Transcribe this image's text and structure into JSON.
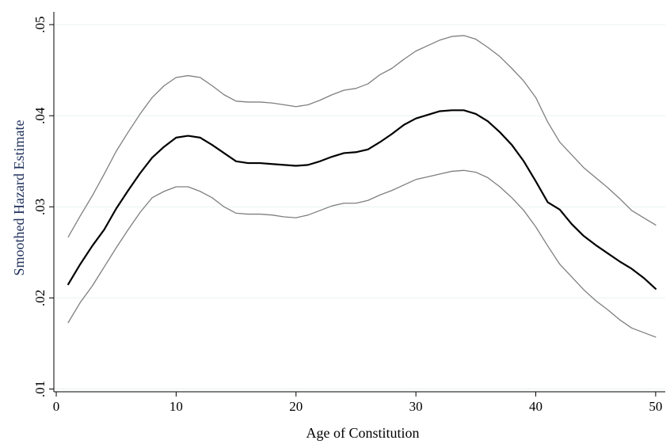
{
  "chart_data": {
    "type": "line",
    "xlabel": "Age of Constitution",
    "ylabel": "Smoothed Hazard Estimate",
    "xlim": [
      -0.2,
      50.8
    ],
    "ylim": [
      0.0097,
      0.0514
    ],
    "xticks": [
      0,
      10,
      20,
      30,
      40,
      50
    ],
    "xtick_labels": [
      "0",
      "10",
      "20",
      "30",
      "40",
      "50"
    ],
    "yticks": [
      0.01,
      0.02,
      0.03,
      0.04,
      0.05
    ],
    "ytick_labels": [
      ".01",
      ".02",
      ".03",
      ".04",
      ".05"
    ],
    "grid": "horizontal",
    "legend": "none",
    "colors": {
      "estimate": "#000000",
      "bounds": "#7f7f7f",
      "ylabel": "#1e2f5a",
      "grid": "#eaf2f3"
    },
    "x": [
      1,
      2,
      3,
      4,
      5,
      6,
      7,
      8,
      9,
      10,
      11,
      12,
      13,
      14,
      15,
      16,
      17,
      18,
      19,
      20,
      21,
      22,
      23,
      24,
      25,
      26,
      27,
      28,
      29,
      30,
      31,
      32,
      33,
      34,
      35,
      36,
      37,
      38,
      39,
      40,
      41,
      42,
      43,
      44,
      45,
      46,
      47,
      48,
      49,
      50
    ],
    "series": [
      {
        "role": "estimate",
        "values": [
          0.0215,
          0.0237,
          0.0257,
          0.0275,
          0.0298,
          0.0318,
          0.0337,
          0.0354,
          0.0366,
          0.0376,
          0.0378,
          0.0376,
          0.0368,
          0.0359,
          0.035,
          0.0348,
          0.0348,
          0.0347,
          0.0346,
          0.0345,
          0.0346,
          0.035,
          0.0355,
          0.0359,
          0.036,
          0.0363,
          0.0371,
          0.038,
          0.039,
          0.0397,
          0.0401,
          0.0405,
          0.0406,
          0.0406,
          0.0402,
          0.0394,
          0.0382,
          0.0368,
          0.035,
          0.0328,
          0.0305,
          0.0297,
          0.0281,
          0.0268,
          0.0258,
          0.0249,
          0.024,
          0.0232,
          0.0222,
          0.021
        ]
      },
      {
        "role": "upper",
        "values": [
          0.0267,
          0.029,
          0.0312,
          0.0336,
          0.0361,
          0.0382,
          0.0402,
          0.042,
          0.0433,
          0.0442,
          0.0444,
          0.0442,
          0.0433,
          0.0423,
          0.0416,
          0.0415,
          0.0415,
          0.0414,
          0.0412,
          0.041,
          0.0412,
          0.0417,
          0.0423,
          0.0428,
          0.043,
          0.0435,
          0.0445,
          0.0452,
          0.0462,
          0.0471,
          0.0477,
          0.0483,
          0.0487,
          0.0488,
          0.0484,
          0.0475,
          0.0465,
          0.0452,
          0.0438,
          0.042,
          0.0393,
          0.0371,
          0.0357,
          0.0343,
          0.0332,
          0.0321,
          0.0309,
          0.0296,
          0.0288,
          0.028
        ]
      },
      {
        "role": "lower",
        "values": [
          0.0173,
          0.0195,
          0.0213,
          0.0234,
          0.0255,
          0.0275,
          0.0294,
          0.031,
          0.0317,
          0.0322,
          0.0322,
          0.0317,
          0.031,
          0.03,
          0.0293,
          0.0292,
          0.0292,
          0.0291,
          0.0289,
          0.0288,
          0.0291,
          0.0296,
          0.0301,
          0.0304,
          0.0304,
          0.0307,
          0.0313,
          0.0318,
          0.0324,
          0.033,
          0.0333,
          0.0336,
          0.0339,
          0.034,
          0.0338,
          0.0332,
          0.0322,
          0.031,
          0.0296,
          0.0278,
          0.0257,
          0.0237,
          0.0223,
          0.0209,
          0.0197,
          0.0187,
          0.0176,
          0.0167,
          0.0162,
          0.0157
        ]
      }
    ]
  }
}
